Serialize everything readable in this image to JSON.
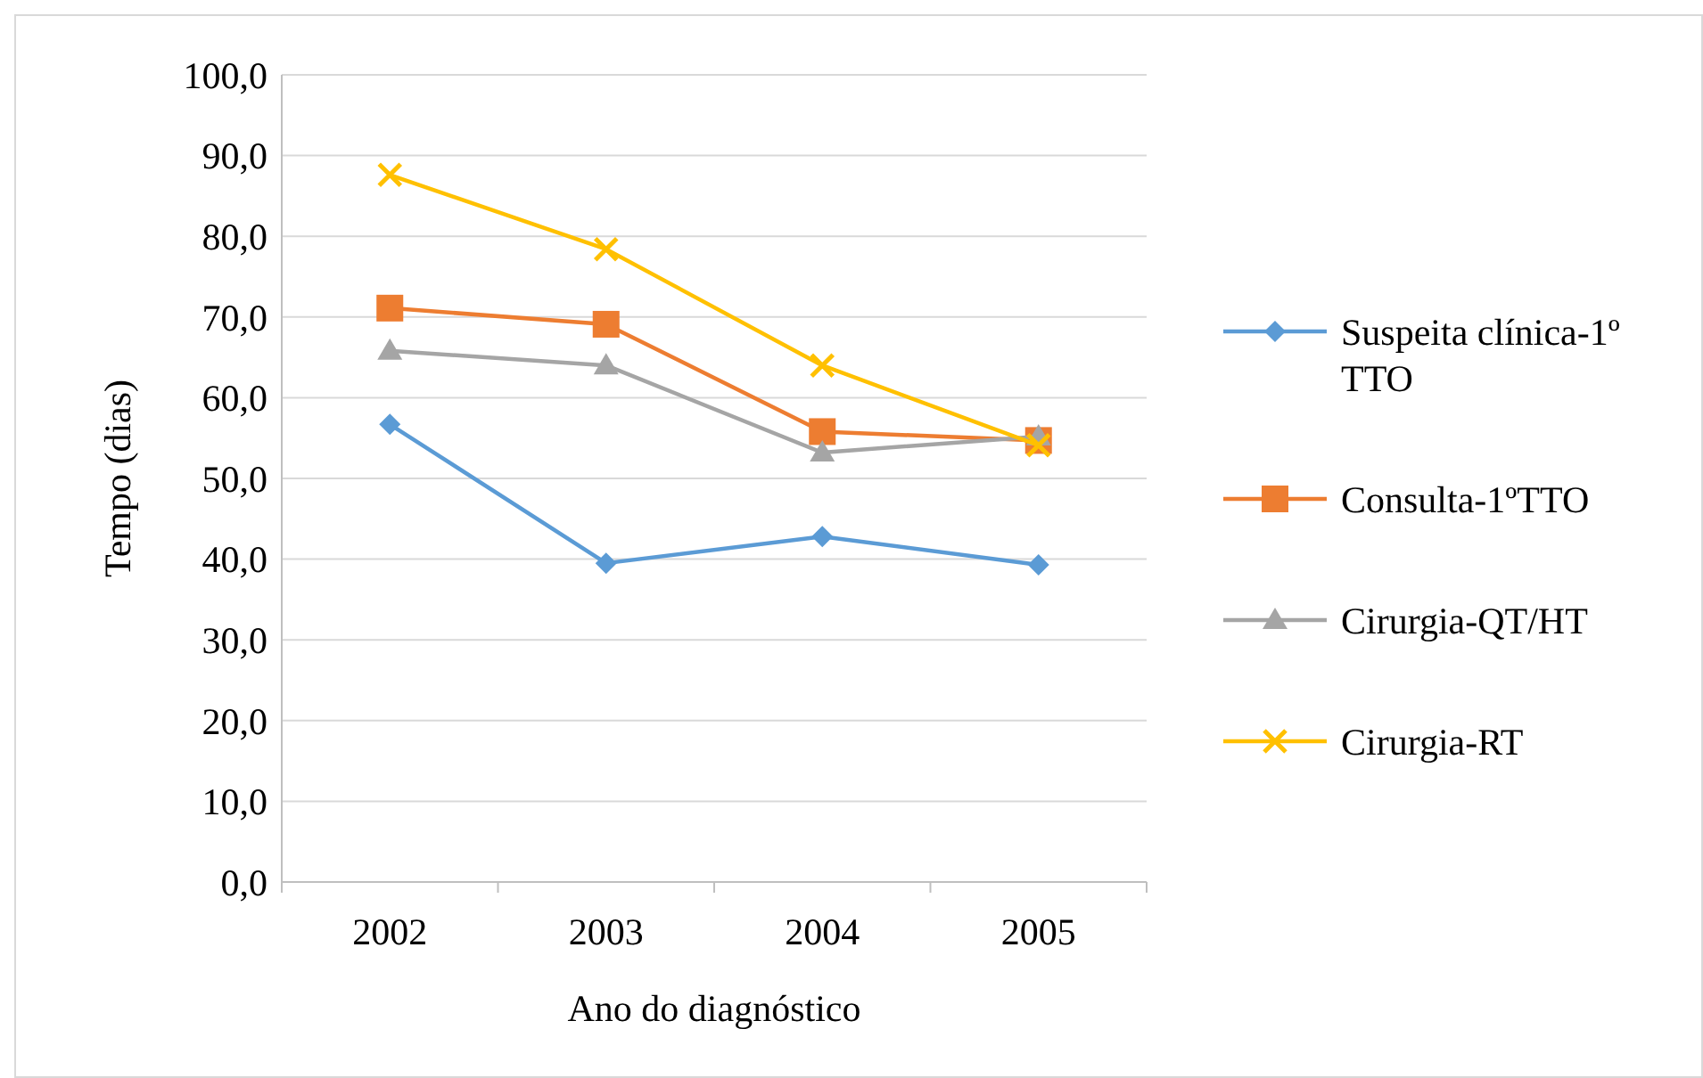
{
  "chart_data": {
    "type": "line",
    "xlabel": "Ano do diagnóstico",
    "ylabel": "Tempo (dias)",
    "categories": [
      "2002",
      "2003",
      "2004",
      "2005"
    ],
    "series": [
      {
        "name": "Suspeita clínica-1º TTO",
        "color": "#5b9bd5",
        "marker": "diamond",
        "values": [
          56.7,
          39.5,
          42.8,
          39.3
        ]
      },
      {
        "name": "Consulta-1ºTTO",
        "color": "#ed7d31",
        "marker": "square",
        "values": [
          71.1,
          69.1,
          55.8,
          54.7
        ]
      },
      {
        "name": "Cirurgia-QT/HT",
        "color": "#a5a5a5",
        "marker": "triangle",
        "values": [
          65.8,
          64.0,
          53.2,
          55.2
        ]
      },
      {
        "name": "Cirurgia-RT",
        "color": "#ffc000",
        "marker": "cross",
        "values": [
          87.6,
          78.4,
          64.0,
          54.1
        ]
      }
    ],
    "ylim": [
      0,
      100
    ],
    "yticks": [
      {
        "value": 0,
        "label": "0,0"
      },
      {
        "value": 10,
        "label": "10,0"
      },
      {
        "value": 20,
        "label": "20,0"
      },
      {
        "value": 30,
        "label": "30,0"
      },
      {
        "value": 40,
        "label": "40,0"
      },
      {
        "value": 50,
        "label": "50,0"
      },
      {
        "value": 60,
        "label": "60,0"
      },
      {
        "value": 70,
        "label": "70,0"
      },
      {
        "value": 80,
        "label": "80,0"
      },
      {
        "value": 90,
        "label": "90,0"
      },
      {
        "value": 100,
        "label": "100,0"
      }
    ],
    "grid": "y",
    "legend": "right",
    "line_style": "solid"
  }
}
